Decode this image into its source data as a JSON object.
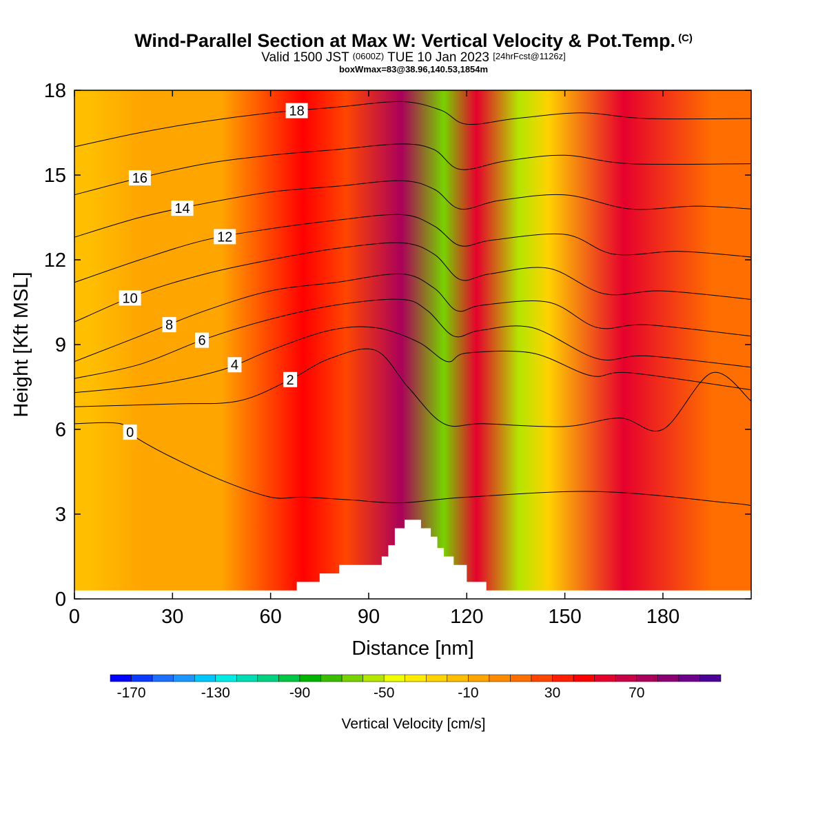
{
  "title": {
    "main": "Wind-Parallel Section at Max W: Vertical Velocity & Pot.Temp.",
    "copyright": "(C)",
    "valid_prefix": "Valid 1500 JST",
    "valid_utc": "(0600Z)",
    "valid_date": "TUE 10 Jan 2023",
    "forecast": "[24hrFcst@1126z]",
    "boxwmax": "boxWmax=83@38.96,140.53,1854m"
  },
  "chart_data": {
    "type": "heatmap",
    "xlabel": "Distance [nm]",
    "ylabel": "Height [Kft MSL]",
    "xlim": [
      0,
      207
    ],
    "ylim": [
      0,
      18
    ],
    "x_ticks": [
      "0",
      "30",
      "60",
      "90",
      "120",
      "150",
      "180"
    ],
    "y_ticks": [
      "0",
      "3",
      "6",
      "9",
      "12",
      "15",
      "18"
    ],
    "colorbar": {
      "label": "Vertical Velocity [cm/s]",
      "tick_labels": [
        "-170",
        "-130",
        "-90",
        "-50",
        "-10",
        "30",
        "70"
      ],
      "min": -180,
      "step": 10,
      "colors": [
        "#0000ff",
        "#0a3cff",
        "#1e6eff",
        "#1e96ff",
        "#00c8ff",
        "#00ebe6",
        "#00dcb4",
        "#00d282",
        "#00c846",
        "#00b400",
        "#3cbe00",
        "#78d200",
        "#b4e600",
        "#f0ff00",
        "#ffeb00",
        "#ffd200",
        "#ffbe00",
        "#ffa500",
        "#ff8c00",
        "#ff6e00",
        "#ff4600",
        "#ff1e00",
        "#ff0000",
        "#e6002d",
        "#c80046",
        "#aa005a",
        "#8c0073",
        "#6e008c",
        "#4b0096"
      ]
    },
    "ww_columns": [
      {
        "x": 5,
        "value": -15
      },
      {
        "x": 20,
        "value": -5
      },
      {
        "x": 45,
        "value": -10
      },
      {
        "x": 70,
        "value": 45
      },
      {
        "x": 83,
        "value": 25
      },
      {
        "x": 100,
        "value": 75
      },
      {
        "x": 113,
        "value": -70
      },
      {
        "x": 123,
        "value": 50
      },
      {
        "x": 136,
        "value": -55
      },
      {
        "x": 145,
        "value": -25
      },
      {
        "x": 168,
        "value": 50
      },
      {
        "x": 195,
        "value": 10
      }
    ],
    "terrain": [
      {
        "x": 0,
        "h": 0.3
      },
      {
        "x": 68,
        "h": 0.3
      },
      {
        "x": 68,
        "h": 0.6
      },
      {
        "x": 75,
        "h": 0.6
      },
      {
        "x": 75,
        "h": 0.9
      },
      {
        "x": 81,
        "h": 0.9
      },
      {
        "x": 81,
        "h": 1.2
      },
      {
        "x": 94,
        "h": 1.2
      },
      {
        "x": 94,
        "h": 1.5
      },
      {
        "x": 96,
        "h": 1.5
      },
      {
        "x": 96,
        "h": 1.9
      },
      {
        "x": 98,
        "h": 1.9
      },
      {
        "x": 98,
        "h": 2.5
      },
      {
        "x": 101,
        "h": 2.5
      },
      {
        "x": 101,
        "h": 2.8
      },
      {
        "x": 106,
        "h": 2.8
      },
      {
        "x": 106,
        "h": 2.5
      },
      {
        "x": 109,
        "h": 2.5
      },
      {
        "x": 109,
        "h": 2.2
      },
      {
        "x": 111,
        "h": 2.2
      },
      {
        "x": 111,
        "h": 1.8
      },
      {
        "x": 113,
        "h": 1.8
      },
      {
        "x": 113,
        "h": 1.5
      },
      {
        "x": 116,
        "h": 1.5
      },
      {
        "x": 116,
        "h": 1.2
      },
      {
        "x": 120,
        "h": 1.2
      },
      {
        "x": 120,
        "h": 0.6
      },
      {
        "x": 126,
        "h": 0.6
      },
      {
        "x": 126,
        "h": 0.3
      },
      {
        "x": 207,
        "h": 0.3
      }
    ],
    "theta_contours": [
      {
        "theta": 0,
        "label": "0",
        "label_x": 17,
        "points": [
          [
            0,
            6.2
          ],
          [
            14,
            6.2
          ],
          [
            19,
            5.7
          ],
          [
            30,
            5.0
          ],
          [
            45,
            4.2
          ],
          [
            60,
            3.6
          ],
          [
            70,
            3.6
          ],
          [
            85,
            3.5
          ],
          [
            100,
            3.4
          ],
          [
            120,
            3.6
          ],
          [
            160,
            3.8
          ],
          [
            200,
            3.4
          ],
          [
            207,
            3.3
          ]
        ]
      },
      {
        "theta": 2,
        "label": "2",
        "label_x": 66,
        "points": [
          [
            0,
            6.8
          ],
          [
            30,
            6.9
          ],
          [
            50,
            7.0
          ],
          [
            65,
            7.7
          ],
          [
            78,
            8.5
          ],
          [
            92,
            8.8
          ],
          [
            102,
            7.5
          ],
          [
            113,
            6.2
          ],
          [
            125,
            6.2
          ],
          [
            150,
            6.1
          ],
          [
            167,
            6.4
          ],
          [
            180,
            6.0
          ],
          [
            195,
            8.0
          ],
          [
            207,
            7.0
          ]
        ]
      },
      {
        "theta": 4,
        "label": "4",
        "label_x": 49,
        "points": [
          [
            0,
            7.3
          ],
          [
            25,
            7.6
          ],
          [
            45,
            8.1
          ],
          [
            60,
            8.8
          ],
          [
            78,
            9.5
          ],
          [
            92,
            9.6
          ],
          [
            105,
            9.1
          ],
          [
            114,
            8.4
          ],
          [
            120,
            8.7
          ],
          [
            140,
            8.7
          ],
          [
            158,
            7.9
          ],
          [
            170,
            8.0
          ],
          [
            207,
            7.4
          ]
        ]
      },
      {
        "theta": 6,
        "label": "6",
        "label_x": 39,
        "points": [
          [
            0,
            7.8
          ],
          [
            20,
            8.3
          ],
          [
            40,
            9.2
          ],
          [
            60,
            9.9
          ],
          [
            80,
            10.4
          ],
          [
            100,
            10.6
          ],
          [
            108,
            10.2
          ],
          [
            116,
            9.3
          ],
          [
            124,
            9.5
          ],
          [
            140,
            9.6
          ],
          [
            160,
            8.5
          ],
          [
            175,
            8.6
          ],
          [
            207,
            8.2
          ]
        ]
      },
      {
        "theta": 8,
        "label": "8",
        "label_x": 29,
        "points": [
          [
            0,
            8.4
          ],
          [
            20,
            9.3
          ],
          [
            40,
            10.2
          ],
          [
            60,
            10.9
          ],
          [
            80,
            11.2
          ],
          [
            100,
            11.5
          ],
          [
            110,
            11.0
          ],
          [
            117,
            10.2
          ],
          [
            125,
            10.4
          ],
          [
            145,
            10.5
          ],
          [
            160,
            9.6
          ],
          [
            175,
            9.7
          ],
          [
            207,
            9.3
          ]
        ]
      },
      {
        "theta": 10,
        "label": "10",
        "label_x": 17,
        "points": [
          [
            0,
            9.8
          ],
          [
            20,
            10.8
          ],
          [
            40,
            11.5
          ],
          [
            60,
            12.0
          ],
          [
            80,
            12.4
          ],
          [
            100,
            12.6
          ],
          [
            110,
            12.2
          ],
          [
            118,
            11.3
          ],
          [
            127,
            11.5
          ],
          [
            145,
            11.7
          ],
          [
            162,
            10.8
          ],
          [
            180,
            10.9
          ],
          [
            207,
            10.6
          ]
        ]
      },
      {
        "theta": 12,
        "label": "12",
        "label_x": 46,
        "points": [
          [
            0,
            11.2
          ],
          [
            20,
            12.0
          ],
          [
            40,
            12.7
          ],
          [
            60,
            13.1
          ],
          [
            80,
            13.4
          ],
          [
            100,
            13.6
          ],
          [
            110,
            13.2
          ],
          [
            118,
            12.5
          ],
          [
            128,
            12.7
          ],
          [
            150,
            12.9
          ],
          [
            165,
            12.2
          ],
          [
            185,
            12.3
          ],
          [
            207,
            12.1
          ]
        ]
      },
      {
        "theta": 14,
        "label": "14",
        "label_x": 33,
        "points": [
          [
            0,
            12.8
          ],
          [
            20,
            13.5
          ],
          [
            40,
            14.0
          ],
          [
            60,
            14.4
          ],
          [
            80,
            14.6
          ],
          [
            100,
            14.8
          ],
          [
            110,
            14.5
          ],
          [
            118,
            13.8
          ],
          [
            130,
            14.1
          ],
          [
            150,
            14.3
          ],
          [
            170,
            13.8
          ],
          [
            190,
            13.9
          ],
          [
            207,
            13.8
          ]
        ]
      },
      {
        "theta": 16,
        "label": "16",
        "label_x": 20,
        "points": [
          [
            0,
            14.3
          ],
          [
            20,
            14.9
          ],
          [
            40,
            15.4
          ],
          [
            60,
            15.7
          ],
          [
            80,
            15.9
          ],
          [
            100,
            16.1
          ],
          [
            110,
            15.9
          ],
          [
            118,
            15.2
          ],
          [
            132,
            15.5
          ],
          [
            150,
            15.7
          ],
          [
            170,
            15.4
          ],
          [
            207,
            15.4
          ]
        ]
      },
      {
        "theta": 18,
        "label": "18",
        "label_x": 68,
        "points": [
          [
            0,
            16.0
          ],
          [
            20,
            16.5
          ],
          [
            40,
            16.9
          ],
          [
            60,
            17.2
          ],
          [
            80,
            17.4
          ],
          [
            100,
            17.6
          ],
          [
            112,
            17.3
          ],
          [
            120,
            16.8
          ],
          [
            135,
            17.0
          ],
          [
            155,
            17.2
          ],
          [
            175,
            17.0
          ],
          [
            207,
            17.0
          ]
        ]
      }
    ]
  }
}
